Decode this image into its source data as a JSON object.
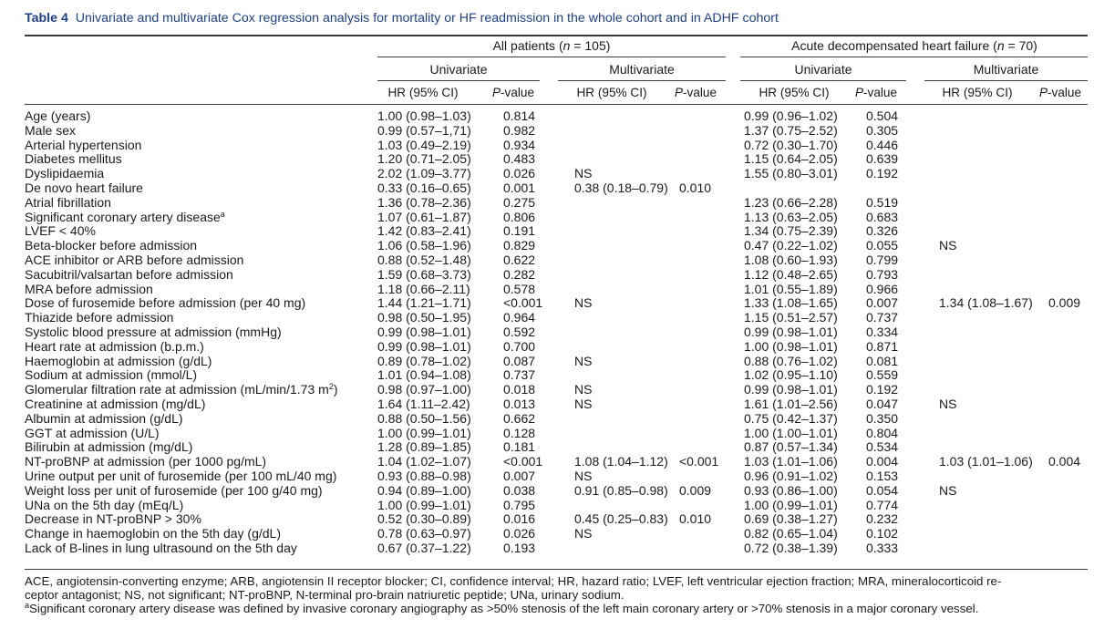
{
  "caption": {
    "label": "Table 4",
    "text": "Univariate and multivariate Cox regression analysis for mortality or HF readmission in the whole cohort and in ADHF cohort"
  },
  "groups": {
    "all_label": "All patients (",
    "all_n": "n",
    "all_value": " = 105)",
    "adhf_label": "Acute decompensated heart failure (",
    "adhf_n": "n",
    "adhf_value": " = 70)"
  },
  "analysis": {
    "univariate": "Univariate",
    "multivariate": "Multivariate"
  },
  "columns": {
    "hr": "HR (95% CI)",
    "p_italic": "P",
    "p_rest": "-value"
  },
  "rows": [
    {
      "label": "Age (years)",
      "sup": "",
      "c": [
        "1.00 (0.98–1.03)",
        "0.814",
        "",
        "",
        "0.99 (0.96–1.02)",
        "0.504",
        "",
        ""
      ]
    },
    {
      "label": "Male sex",
      "sup": "",
      "c": [
        "0.99 (0.57–1,71)",
        "0.982",
        "",
        "",
        "1.37 (0.75–2.52)",
        "0.305",
        "",
        ""
      ]
    },
    {
      "label": "Arterial hypertension",
      "sup": "",
      "c": [
        "1.03 (0.49–2.19)",
        "0.934",
        "",
        "",
        "0.72 (0.30–1.70)",
        "0.446",
        "",
        ""
      ]
    },
    {
      "label": "Diabetes mellitus",
      "sup": "",
      "c": [
        "1.20 (0.71–2.05)",
        "0.483",
        "",
        "",
        "1.15 (0.64–2.05)",
        "0.639",
        "",
        ""
      ]
    },
    {
      "label": "Dyslipidaemia",
      "sup": "",
      "c": [
        "2.02 (1.09–3.77)",
        "0.026",
        "NS",
        "",
        "1.55 (0.80–3.01)",
        "0.192",
        "",
        ""
      ]
    },
    {
      "label": "De novo heart failure",
      "sup": "",
      "c": [
        "0.33 (0.16–0.65)",
        "0.001",
        "0.38 (0.18–0.79)",
        "0.010",
        "",
        "",
        "",
        ""
      ]
    },
    {
      "label": "Atrial fibrillation",
      "sup": "",
      "c": [
        "1.36 (0.78–2.36)",
        "0.275",
        "",
        "",
        "1.23 (0.66–2.28)",
        "0.519",
        "",
        ""
      ]
    },
    {
      "label": "Significant coronary artery disease",
      "sup": "a",
      "c": [
        "1.07 (0.61–1.87)",
        "0.806",
        "",
        "",
        "1.13 (0.63–2.05)",
        "0.683",
        "",
        ""
      ]
    },
    {
      "label": "LVEF < 40%",
      "sup": "",
      "c": [
        "1.42 (0.83–2.41)",
        "0.191",
        "",
        "",
        "1.34 (0.75–2.39)",
        "0.326",
        "",
        ""
      ]
    },
    {
      "label": "Beta-blocker before admission",
      "sup": "",
      "c": [
        "1.06 (0.58–1.96)",
        "0.829",
        "",
        "",
        "0.47 (0.22–1.02)",
        "0.055",
        "NS",
        ""
      ]
    },
    {
      "label": "ACE inhibitor or ARB before admission",
      "sup": "",
      "c": [
        "0.88 (0.52–1.48)",
        "0.622",
        "",
        "",
        "1.08 (0.60–1.93)",
        "0.799",
        "",
        ""
      ]
    },
    {
      "label": "Sacubitril/valsartan before admission",
      "sup": "",
      "c": [
        "1.59 (0.68–3.73)",
        "0.282",
        "",
        "",
        "1.12 (0.48–2.65)",
        "0.793",
        "",
        ""
      ]
    },
    {
      "label": "MRA before admission",
      "sup": "",
      "c": [
        "1.18 (0.66–2.11)",
        "0.578",
        "",
        "",
        "1.01 (0.55–1.89)",
        "0.966",
        "",
        ""
      ]
    },
    {
      "label": "Dose of furosemide before admission (per 40 mg)",
      "sup": "",
      "c": [
        "1.44 (1.21–1.71)",
        "<0.001",
        "NS",
        "",
        "1.33 (1.08–1.65)",
        "0.007",
        "1.34 (1.08–1.67)",
        "0.009"
      ]
    },
    {
      "label": "Thiazide before admission",
      "sup": "",
      "c": [
        "0.98 (0.50–1.95)",
        "0.964",
        "",
        "",
        "1.15 (0.51–2.57)",
        "0.737",
        "",
        ""
      ]
    },
    {
      "label": "Systolic blood pressure at admission (mmHg)",
      "sup": "",
      "c": [
        "0.99 (0.98–1.01)",
        "0.592",
        "",
        "",
        "0.99 (0.98–1.01)",
        "0.334",
        "",
        ""
      ]
    },
    {
      "label": "Heart rate at admission (b.p.m.)",
      "sup": "",
      "c": [
        "0.99 (0.98–1.01)",
        "0.700",
        "",
        "",
        "1.00 (0.98–1.01)",
        "0.871",
        "",
        ""
      ]
    },
    {
      "label": "Haemoglobin at admission (g/dL)",
      "sup": "",
      "c": [
        "0.89 (0.78–1.02)",
        "0.087",
        "NS",
        "",
        "0.88 (0.76–1.02)",
        "0.081",
        "",
        ""
      ]
    },
    {
      "label": "Sodium at admission (mmol/L)",
      "sup": "",
      "c": [
        "1.01 (0.94–1.08)",
        "0.737",
        "",
        "",
        "1.02 (0.95–1.10)",
        "0.559",
        "",
        ""
      ]
    },
    {
      "label": "Glomerular filtration rate at admission (mL/min/1.73 m",
      "sup": "2",
      "tail": ")",
      "c": [
        "0.98 (0.97–1.00)",
        "0.018",
        "NS",
        "",
        "0.99 (0.98–1.01)",
        "0.192",
        "",
        ""
      ]
    },
    {
      "label": "Creatinine at admission (mg/dL)",
      "sup": "",
      "c": [
        "1.64 (1.11–2.42)",
        "0.013",
        "NS",
        "",
        "1.61 (1.01–2.56)",
        "0.047",
        "NS",
        ""
      ]
    },
    {
      "label": "Albumin at admission (g/dL)",
      "sup": "",
      "c": [
        "0.88 (0.50–1.56)",
        "0.662",
        "",
        "",
        "0.75 (0.42–1.37)",
        "0.350",
        "",
        ""
      ]
    },
    {
      "label": "GGT at admission (U/L)",
      "sup": "",
      "c": [
        "1.00 (0.99–1.01)",
        "0.128",
        "",
        "",
        "1.00 (1.00–1.01)",
        "0.804",
        "",
        ""
      ]
    },
    {
      "label": "Bilirubin at admission (mg/dL)",
      "sup": "",
      "c": [
        "1.28 (0.89–1.85)",
        "0.181",
        "",
        "",
        "0.87 (0.57–1.34)",
        "0.534",
        "",
        ""
      ]
    },
    {
      "label": "NT-proBNP at admission (per 1000 pg/mL)",
      "sup": "",
      "c": [
        "1.04 (1.02–1.07)",
        "<0.001",
        "1.08 (1.04–1.12)",
        "<0.001",
        "1.03 (1.01–1.06)",
        "0.004",
        "1.03 (1.01–1.06)",
        "0.004"
      ]
    },
    {
      "label": "Urine output per unit of furosemide (per 100 mL/40 mg)",
      "sup": "",
      "c": [
        "0.93 (0.88–0.98)",
        "0.007",
        "NS",
        "",
        "0.96 (0.91–1.02)",
        "0.153",
        "",
        ""
      ]
    },
    {
      "label": "Weight loss per unit of furosemide (per 100 g/40 mg)",
      "sup": "",
      "c": [
        "0.94 (0.89–1.00)",
        "0.038",
        "0.91 (0.85–0.98)",
        "0.009",
        "0.93 (0.86–1.00)",
        "0.054",
        "NS",
        ""
      ]
    },
    {
      "label": "UNa on the 5th day (mEq/L)",
      "sup": "",
      "c": [
        "1.00 (0.99–1.01)",
        "0.795",
        "",
        "",
        "1.00 (0.99–1.01)",
        "0.774",
        "",
        ""
      ]
    },
    {
      "label": "Decrease in NT-proBNP > 30%",
      "sup": "",
      "c": [
        "0.52 (0.30–0.89)",
        "0.016",
        "0.45 (0.25–0.83)",
        "0.010",
        "0.69 (0.38–1.27)",
        "0.232",
        "",
        ""
      ]
    },
    {
      "label": "Change in haemoglobin on the 5th day (g/dL)",
      "sup": "",
      "c": [
        "0.78 (0.63–0.97)",
        "0.026",
        "NS",
        "",
        "0.82 (0.65–1.04)",
        "0.102",
        "",
        ""
      ]
    },
    {
      "label": "Lack of B-lines in lung ultrasound on the 5th day",
      "sup": "",
      "c": [
        "0.67 (0.37–1.22)",
        "0.193",
        "",
        "",
        "0.72 (0.38–1.39)",
        "0.333",
        "",
        ""
      ]
    }
  ],
  "footnotes": {
    "abbr_line1": "ACE, angiotensin-converting enzyme; ARB, angiotensin II receptor blocker; CI, confidence interval; HR, hazard ratio; LVEF, left ventricular ejection fraction; MRA, mineralocorticoid re-",
    "abbr_line2": "ceptor antagonist; NS, not significant; NT-proBNP, N-terminal pro-brain natriuretic peptide; UNa, urinary sodium.",
    "note_sup": "a",
    "note_text": "Significant coronary artery disease was defined by invasive coronary angiography as >50% stenosis of the left main coronary artery or >70% stenosis in a major coronary vessel."
  }
}
